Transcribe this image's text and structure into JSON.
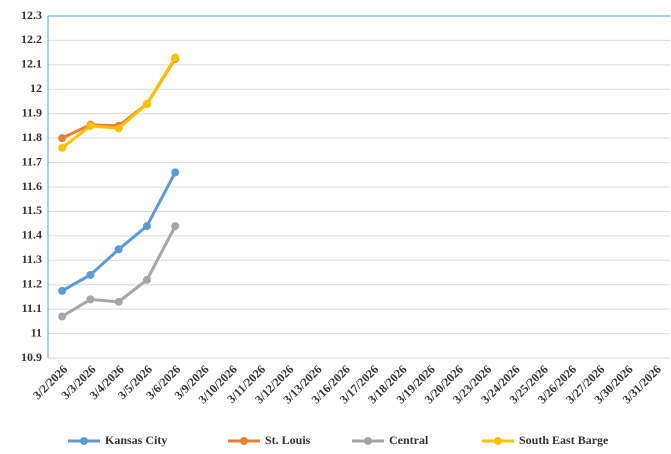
{
  "chart_data": {
    "type": "line",
    "categories": [
      "3/2/2026",
      "3/3/2026",
      "3/4/2026",
      "3/5/2026",
      "3/6/2026",
      "3/9/2026",
      "3/10/2026",
      "3/11/2026",
      "3/12/2026",
      "3/13/2026",
      "3/16/2026",
      "3/17/2026",
      "3/18/2026",
      "3/19/2026",
      "3/20/2026",
      "3/23/2026",
      "3/24/2026",
      "3/25/2026",
      "3/26/2026",
      "3/27/2026",
      "3/30/2026",
      "3/31/2026"
    ],
    "series": [
      {
        "name": "Kansas City",
        "color": "#5b9bd5",
        "values": [
          11.175,
          11.24,
          11.345,
          11.44,
          11.66,
          null,
          null,
          null,
          null,
          null,
          null,
          null,
          null,
          null,
          null,
          null,
          null,
          null,
          null,
          null,
          null,
          null
        ]
      },
      {
        "name": "St. Louis",
        "color": "#ed7d31",
        "values": [
          11.8,
          11.855,
          11.85,
          11.94,
          12.125,
          null,
          null,
          null,
          null,
          null,
          null,
          null,
          null,
          null,
          null,
          null,
          null,
          null,
          null,
          null,
          null,
          null
        ]
      },
      {
        "name": "Central",
        "color": "#a5a5a5",
        "values": [
          11.07,
          11.14,
          11.13,
          11.22,
          11.44,
          null,
          null,
          null,
          null,
          null,
          null,
          null,
          null,
          null,
          null,
          null,
          null,
          null,
          null,
          null,
          null,
          null
        ]
      },
      {
        "name": "South East Barge",
        "color": "#ffc000",
        "values": [
          11.76,
          11.85,
          11.84,
          11.94,
          12.13,
          null,
          null,
          null,
          null,
          null,
          null,
          null,
          null,
          null,
          null,
          null,
          null,
          null,
          null,
          null,
          null,
          null
        ]
      }
    ],
    "ylim": [
      10.9,
      12.3
    ],
    "yticks": [
      10.9,
      11,
      11.1,
      11.2,
      11.3,
      11.4,
      11.5,
      11.6,
      11.7,
      11.8,
      11.9,
      12,
      12.1,
      12.2,
      12.3
    ],
    "grid": true,
    "legend": "bottom"
  }
}
